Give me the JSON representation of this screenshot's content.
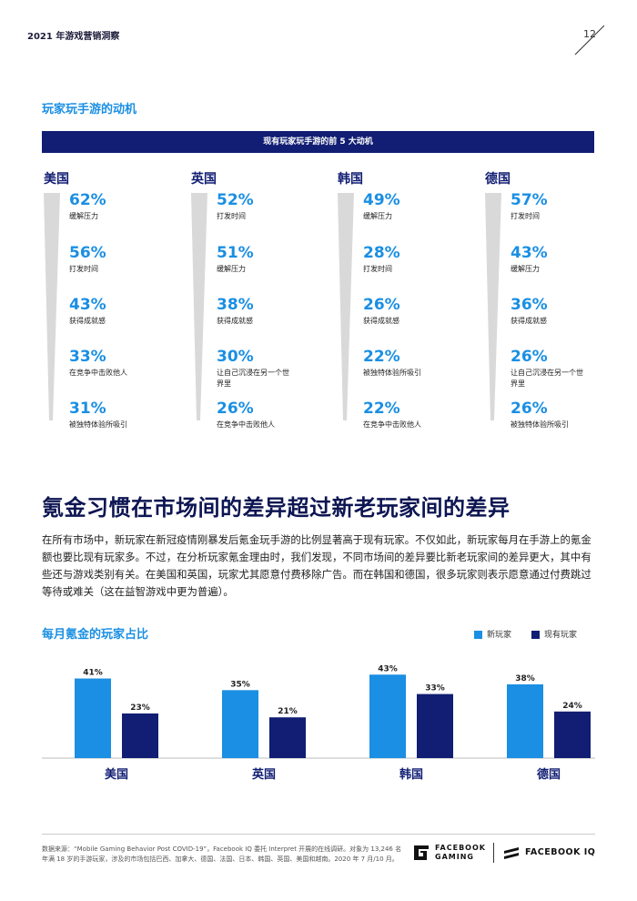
{
  "header": {
    "title": "2021 年游戏营销洞察",
    "page_number": "12"
  },
  "motivations": {
    "section_title": "玩家玩手游的动机",
    "banner": "现有玩家玩手游的前 5 大动机",
    "columns": [
      {
        "country": "美国",
        "items": [
          {
            "pct": "62%",
            "label": "缓解压力"
          },
          {
            "pct": "56%",
            "label": "打发时间"
          },
          {
            "pct": "43%",
            "label": "获得成就感"
          },
          {
            "pct": "33%",
            "label": "在竞争中击败他人"
          },
          {
            "pct": "31%",
            "label": "被独特体验所吸引"
          }
        ]
      },
      {
        "country": "英国",
        "items": [
          {
            "pct": "52%",
            "label": "打发时间"
          },
          {
            "pct": "51%",
            "label": "缓解压力"
          },
          {
            "pct": "38%",
            "label": "获得成就感"
          },
          {
            "pct": "30%",
            "label": "让自己沉浸在另一个世界里"
          },
          {
            "pct": "26%",
            "label": "在竞争中击败他人"
          }
        ]
      },
      {
        "country": "韩国",
        "items": [
          {
            "pct": "49%",
            "label": "缓解压力"
          },
          {
            "pct": "28%",
            "label": "打发时间"
          },
          {
            "pct": "26%",
            "label": "获得成就感"
          },
          {
            "pct": "22%",
            "label": "被独特体验所吸引"
          },
          {
            "pct": "22%",
            "label": "在竞争中击败他人"
          }
        ]
      },
      {
        "country": "德国",
        "items": [
          {
            "pct": "57%",
            "label": "打发时间"
          },
          {
            "pct": "43%",
            "label": "缓解压力"
          },
          {
            "pct": "36%",
            "label": "获得成就感"
          },
          {
            "pct": "26%",
            "label": "让自己沉浸在另一个世界里"
          },
          {
            "pct": "26%",
            "label": "被独特体验所吸引"
          }
        ]
      }
    ]
  },
  "spending": {
    "heading": "氪金习惯在市场间的差异超过新老玩家间的差异",
    "paragraph": "在所有市场中，新玩家在新冠疫情刚暴发后氪金玩手游的比例显著高于现有玩家。不仅如此，新玩家每月在手游上的氪金额也要比现有玩家多。不过，在分析玩家氪金理由时，我们发现，不同市场间的差异要比新老玩家间的差异更大，其中有些还与游戏类别有关。在美国和英国，玩家尤其愿意付费移除广告。而在韩国和德国，很多玩家则表示愿意通过付费跳过等待或难关（这在益智游戏中更为普遍）。"
  },
  "chart_data": {
    "type": "bar",
    "title": "每月氪金的玩家占比",
    "categories": [
      "美国",
      "英国",
      "韩国",
      "德国"
    ],
    "series": [
      {
        "name": "新玩家",
        "values": [
          41,
          35,
          43,
          38
        ],
        "color": "#1a8fe3"
      },
      {
        "name": "现有玩家",
        "values": [
          23,
          21,
          33,
          24
        ],
        "color": "#111e73"
      }
    ],
    "value_suffix": "%",
    "ylim": [
      0,
      45
    ],
    "legend_position": "top-right",
    "grid": false
  },
  "footer": {
    "source": "数据来源：“Mobile Gaming Behavior Post COVID-19”，Facebook IQ 委托 Interpret 开展的在线调研。对象为 13,246 名年满 18 岁的手游玩家，涉及的市场包括巴西、加拿大、德国、法国、日本、韩国、英国、美国和越南。2020 年 7 月/10 月。",
    "logo_gaming_line1": "FACEBOOK",
    "logo_gaming_line2": "GAMING",
    "logo_iq": "FACEBOOK IQ"
  },
  "colors": {
    "accent": "#1a8fe3",
    "navy": "#111e73",
    "heading": "#0d1552"
  }
}
